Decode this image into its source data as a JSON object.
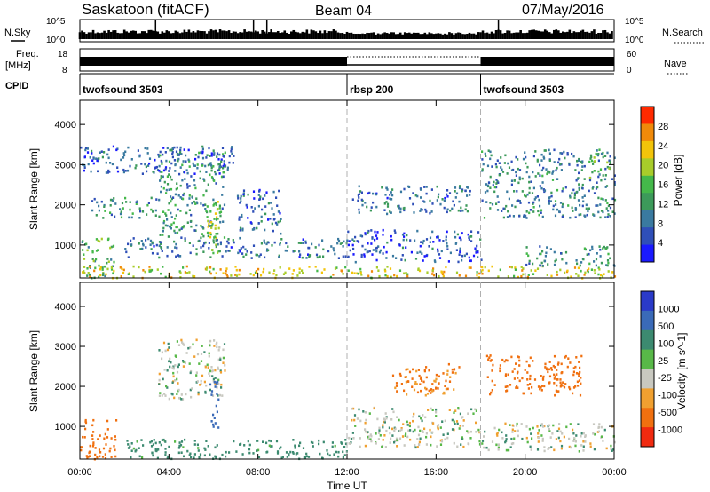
{
  "header": {
    "station": "Saskatoon (fitACF)",
    "beam": "Beam 04",
    "date": "07/May/2016"
  },
  "top_panels": {
    "nsky_label": "N.Sky",
    "nsky_ticks": [
      "10^5",
      "10^0"
    ],
    "nsky_right_ticks": [
      "10^5",
      "10^0"
    ],
    "nsearch_label": "N.Search",
    "freq_label_1": "Freq.",
    "freq_label_2": "[MHz]",
    "freq_ticks": [
      "18",
      "8"
    ],
    "nave_ticks": [
      "60",
      "0"
    ],
    "nave_label": "Nave",
    "cpid_label": "CPID"
  },
  "cpid_segments": [
    {
      "label": "twofsound 3503",
      "start_h": 0,
      "end_h": 12
    },
    {
      "label": "rbsp 200",
      "start_h": 12,
      "end_h": 18
    },
    {
      "label": "twofsound 3503",
      "start_h": 18,
      "end_h": 24
    }
  ],
  "colors": {
    "power_scale": [
      "#1a1aff",
      "#2f4fb8",
      "#3a7aa0",
      "#3c9a5a",
      "#44b84a",
      "#a8cc2a",
      "#f2c40a",
      "#f08a0a",
      "#ff2a00"
    ],
    "velocity_scale": [
      "#2a3ac8",
      "#3a6ab8",
      "#3c8a70",
      "#58b848",
      "#c8c8c0",
      "#f0a030",
      "#f07010",
      "#f02a10"
    ],
    "gridline": "#b0b0b0"
  },
  "chart_data": [
    {
      "type": "heatmap",
      "panel": "power",
      "ylabel": "Slant Range [km]",
      "y_ticks": [
        "1000",
        "2000",
        "3000",
        "4000"
      ],
      "x_ticks": [
        "00:00",
        "04:00",
        "08:00",
        "12:00",
        "16:00",
        "20:00",
        "00:00"
      ],
      "xlim_h": [
        0,
        24
      ],
      "ylim_km": [
        180,
        4600
      ],
      "colorbar_label": "Power [dB]",
      "colorbar_ticks": [
        "4",
        "8",
        "12",
        "16",
        "20",
        "24",
        "28"
      ],
      "colorbar_range": [
        0,
        30
      ],
      "backscatter_regions": [
        {
          "t0": 0.0,
          "t1": 1.5,
          "r0": 200,
          "r1": 1200,
          "level": 14
        },
        {
          "t0": 0.5,
          "t1": 3.5,
          "r0": 1700,
          "r1": 2200,
          "level": 10
        },
        {
          "t0": 0.0,
          "t1": 7.0,
          "r0": 2800,
          "r1": 3500,
          "level": 6
        },
        {
          "t0": 3.5,
          "t1": 6.5,
          "r0": 1200,
          "r1": 3400,
          "level": 11
        },
        {
          "t0": 5.7,
          "t1": 6.3,
          "r0": 800,
          "r1": 2200,
          "level": 18
        },
        {
          "t0": 2.0,
          "t1": 12.0,
          "r0": 700,
          "r1": 1200,
          "level": 8
        },
        {
          "t0": 7.0,
          "t1": 9.0,
          "r0": 1300,
          "r1": 2400,
          "level": 6
        },
        {
          "t0": 0.0,
          "t1": 24.0,
          "r0": 200,
          "r1": 500,
          "level": 20
        },
        {
          "t0": 12.2,
          "t1": 17.5,
          "r0": 1800,
          "r1": 2500,
          "level": 8
        },
        {
          "t0": 12.0,
          "t1": 18.0,
          "r0": 600,
          "r1": 1400,
          "level": 6
        },
        {
          "t0": 18.0,
          "t1": 24.0,
          "r0": 1700,
          "r1": 3400,
          "level": 9
        },
        {
          "t0": 20.0,
          "t1": 24.0,
          "r0": 500,
          "r1": 1000,
          "level": 10
        },
        {
          "t0": 22.8,
          "t1": 23.8,
          "r0": 2700,
          "r1": 3300,
          "level": 14
        }
      ]
    },
    {
      "type": "heatmap",
      "panel": "velocity",
      "ylabel": "Slant Range [km]",
      "y_ticks": [
        "1000",
        "2000",
        "3000",
        "4000"
      ],
      "x_ticks": [
        "00:00",
        "04:00",
        "08:00",
        "12:00",
        "16:00",
        "20:00",
        "00:00"
      ],
      "xlabel": "Time UT",
      "xlim_h": [
        0,
        24
      ],
      "ylim_km": [
        180,
        4600
      ],
      "colorbar_label": "Velocity [m s^-1]",
      "colorbar_ticks": [
        "1000",
        "500",
        "100",
        "25",
        "-25",
        "-100",
        "-500",
        "-1000"
      ],
      "backscatter_regions": [
        {
          "t0": 0.0,
          "t1": 1.6,
          "r0": 200,
          "r1": 1200,
          "velocity": -300
        },
        {
          "t0": 3.5,
          "t1": 6.5,
          "r0": 1700,
          "r1": 3200,
          "velocity": 0
        },
        {
          "t0": 5.8,
          "t1": 6.2,
          "r0": 800,
          "r1": 2200,
          "velocity": 300
        },
        {
          "t0": 2.0,
          "t1": 12.0,
          "r0": 200,
          "r1": 700,
          "velocity": 60
        },
        {
          "t0": 12.0,
          "t1": 18.0,
          "r0": 500,
          "r1": 1500,
          "velocity": 0
        },
        {
          "t0": 14.0,
          "t1": 17.0,
          "r0": 1800,
          "r1": 2600,
          "velocity": -120
        },
        {
          "t0": 18.2,
          "t1": 22.5,
          "r0": 1800,
          "r1": 2800,
          "velocity": -200
        },
        {
          "t0": 18.0,
          "t1": 24.0,
          "r0": 400,
          "r1": 1100,
          "velocity": 0
        }
      ]
    }
  ]
}
